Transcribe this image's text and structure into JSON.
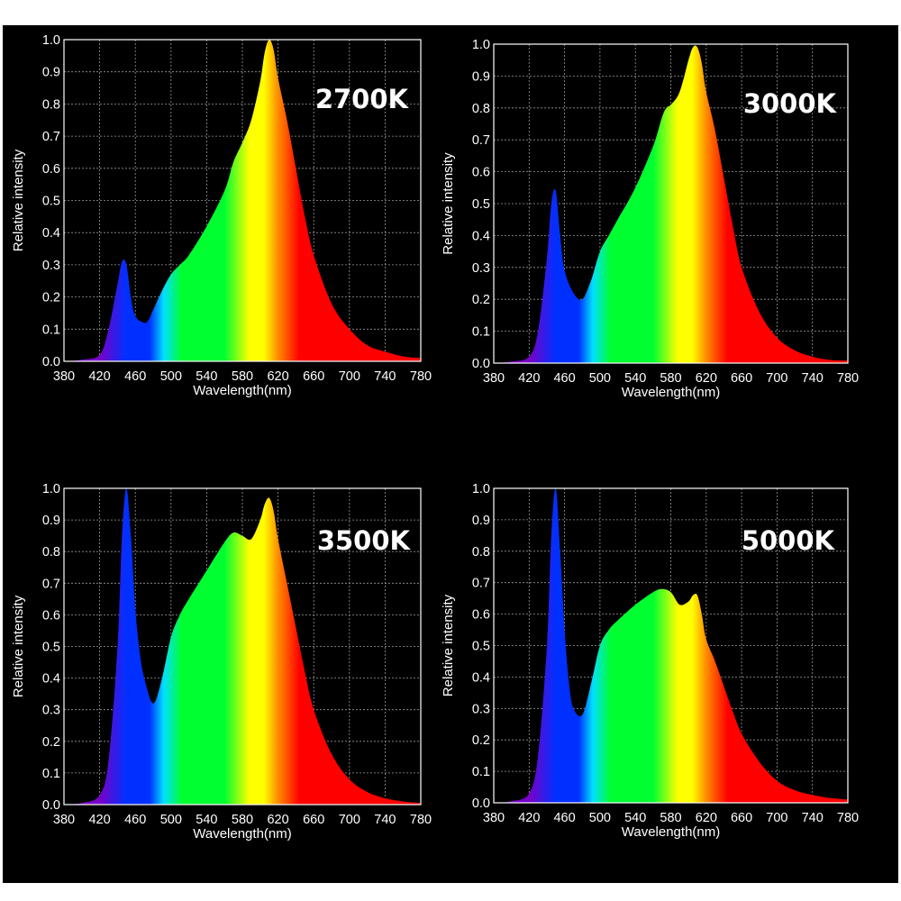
{
  "colors": {
    "background": "#000000",
    "axes": "#ffffff",
    "grid": "#9a9a9a",
    "label_text": "#ffffff",
    "violet": "#7a00c8",
    "blue": "#0030ff",
    "cyan": "#00e0ff",
    "green": "#00ff30",
    "yellow": "#ffff00",
    "orange": "#ff8c00",
    "red": "#ff0000"
  },
  "chart_data": [
    {
      "type": "area",
      "title": "2700K",
      "xlabel": "Wavelength(nm)",
      "ylabel": "Relative intensity",
      "xlim": [
        380,
        780
      ],
      "ylim": [
        0,
        1.0
      ],
      "xticks": [
        "380",
        "420",
        "460",
        "500",
        "540",
        "580",
        "620",
        "660",
        "700",
        "740",
        "780"
      ],
      "yticks": [
        "0.0",
        "0.1",
        "0.2",
        "0.3",
        "0.4",
        "0.5",
        "0.6",
        "0.7",
        "0.8",
        "0.9",
        "1.0"
      ],
      "grid": true,
      "x": [
        380,
        400,
        420,
        430,
        440,
        445,
        450,
        455,
        460,
        470,
        475,
        480,
        490,
        500,
        510,
        520,
        540,
        560,
        570,
        580,
        590,
        600,
        605,
        610,
        615,
        620,
        630,
        640,
        650,
        660,
        680,
        700,
        720,
        740,
        760,
        780
      ],
      "y": [
        0.0,
        0.005,
        0.02,
        0.1,
        0.24,
        0.31,
        0.3,
        0.2,
        0.14,
        0.12,
        0.13,
        0.16,
        0.22,
        0.27,
        0.3,
        0.33,
        0.42,
        0.53,
        0.62,
        0.68,
        0.75,
        0.87,
        0.96,
        1.0,
        0.97,
        0.88,
        0.75,
        0.6,
        0.45,
        0.33,
        0.18,
        0.1,
        0.05,
        0.03,
        0.015,
        0.01
      ]
    },
    {
      "type": "area",
      "title": "3000K",
      "xlabel": "Wavelength(nm)",
      "ylabel": "Relative intensity",
      "xlim": [
        380,
        780
      ],
      "ylim": [
        0,
        1.0
      ],
      "xticks": [
        "380",
        "420",
        "460",
        "500",
        "540",
        "580",
        "620",
        "660",
        "700",
        "740",
        "780"
      ],
      "yticks": [
        "0.0",
        "0.1",
        "0.2",
        "0.3",
        "0.4",
        "0.5",
        "0.6",
        "0.7",
        "0.8",
        "0.9",
        "1.0"
      ],
      "grid": true,
      "x": [
        380,
        400,
        420,
        430,
        440,
        445,
        450,
        455,
        460,
        470,
        480,
        490,
        500,
        510,
        520,
        540,
        560,
        570,
        575,
        580,
        590,
        600,
        605,
        610,
        615,
        620,
        630,
        640,
        650,
        660,
        680,
        700,
        720,
        740,
        760,
        780
      ],
      "y": [
        0.0,
        0.005,
        0.02,
        0.1,
        0.33,
        0.5,
        0.54,
        0.4,
        0.29,
        0.22,
        0.2,
        0.26,
        0.35,
        0.4,
        0.45,
        0.55,
        0.68,
        0.77,
        0.8,
        0.81,
        0.85,
        0.95,
        0.99,
        0.99,
        0.94,
        0.85,
        0.73,
        0.58,
        0.43,
        0.3,
        0.16,
        0.08,
        0.04,
        0.02,
        0.01,
        0.008
      ]
    },
    {
      "type": "area",
      "title": "3500K",
      "xlabel": "Wavelength(nm)",
      "ylabel": "Relative intensity",
      "xlim": [
        380,
        780
      ],
      "ylim": [
        0,
        1.0
      ],
      "xticks": [
        "380",
        "420",
        "460",
        "500",
        "540",
        "580",
        "620",
        "660",
        "700",
        "740",
        "780"
      ],
      "yticks": [
        "0.0",
        "0.1",
        "0.2",
        "0.3",
        "0.4",
        "0.5",
        "0.6",
        "0.7",
        "0.8",
        "0.9",
        "1.0"
      ],
      "grid": true,
      "x": [
        380,
        400,
        420,
        430,
        440,
        445,
        450,
        455,
        460,
        465,
        470,
        480,
        490,
        500,
        510,
        520,
        540,
        560,
        570,
        580,
        590,
        600,
        605,
        610,
        615,
        620,
        630,
        640,
        650,
        660,
        680,
        700,
        720,
        740,
        760,
        780
      ],
      "y": [
        0.0,
        0.005,
        0.03,
        0.14,
        0.5,
        0.85,
        1.0,
        0.85,
        0.62,
        0.48,
        0.4,
        0.32,
        0.4,
        0.53,
        0.6,
        0.65,
        0.74,
        0.83,
        0.86,
        0.85,
        0.84,
        0.9,
        0.95,
        0.97,
        0.93,
        0.84,
        0.7,
        0.56,
        0.42,
        0.3,
        0.16,
        0.08,
        0.04,
        0.02,
        0.01,
        0.005
      ]
    },
    {
      "type": "area",
      "title": "5000K",
      "xlabel": "Wavelength(nm)",
      "ylabel": "Relative intensity",
      "xlim": [
        380,
        780
      ],
      "ylim": [
        0,
        1.0
      ],
      "xticks": [
        "380",
        "420",
        "460",
        "500",
        "540",
        "580",
        "620",
        "660",
        "700",
        "740",
        "780"
      ],
      "yticks": [
        "0.0",
        "0.1",
        "0.2",
        "0.3",
        "0.4",
        "0.5",
        "0.6",
        "0.7",
        "0.8",
        "0.9",
        "1.0"
      ],
      "grid": true,
      "x": [
        380,
        400,
        420,
        430,
        440,
        445,
        450,
        455,
        460,
        465,
        470,
        480,
        490,
        500,
        510,
        520,
        540,
        560,
        570,
        580,
        590,
        600,
        605,
        610,
        615,
        620,
        630,
        640,
        650,
        660,
        680,
        700,
        720,
        740,
        760,
        780
      ],
      "y": [
        0.0,
        0.005,
        0.03,
        0.15,
        0.5,
        0.85,
        1.0,
        0.8,
        0.55,
        0.38,
        0.3,
        0.28,
        0.38,
        0.5,
        0.55,
        0.58,
        0.63,
        0.67,
        0.68,
        0.67,
        0.63,
        0.64,
        0.66,
        0.66,
        0.6,
        0.52,
        0.45,
        0.37,
        0.29,
        0.22,
        0.13,
        0.07,
        0.04,
        0.025,
        0.015,
        0.01
      ]
    }
  ]
}
